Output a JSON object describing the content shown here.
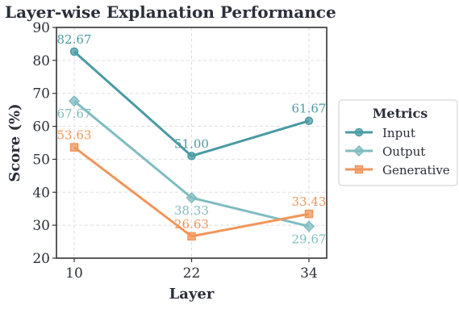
{
  "chart_data": {
    "type": "line",
    "title": "Layer-wise Explanation Performance",
    "xlabel": "Layer",
    "ylabel": "Score (%)",
    "x": [
      10,
      22,
      34
    ],
    "xticks": [
      "10",
      "22",
      "34"
    ],
    "ylim": [
      20,
      90
    ],
    "yticks": [
      "20",
      "30",
      "40",
      "50",
      "60",
      "70",
      "80",
      "90"
    ],
    "grid": true,
    "legend": {
      "title": "Metrics",
      "placement": "right-outside"
    },
    "series": [
      {
        "name": "Input",
        "values": [
          82.67,
          51.0,
          61.67
        ],
        "labels": [
          "82.67",
          "51.00",
          "61.67"
        ],
        "color": "#4a9aa4",
        "marker": "circle"
      },
      {
        "name": "Output",
        "values": [
          67.67,
          38.33,
          29.67
        ],
        "labels": [
          "67.67",
          "38.33",
          "29.67"
        ],
        "color": "#7fbcc0",
        "marker": "diamond"
      },
      {
        "name": "Generative",
        "values": [
          53.63,
          26.63,
          33.43
        ],
        "labels": [
          "53.63",
          "26.63",
          "33.43"
        ],
        "color": "#f0965a",
        "marker": "square"
      }
    ]
  }
}
